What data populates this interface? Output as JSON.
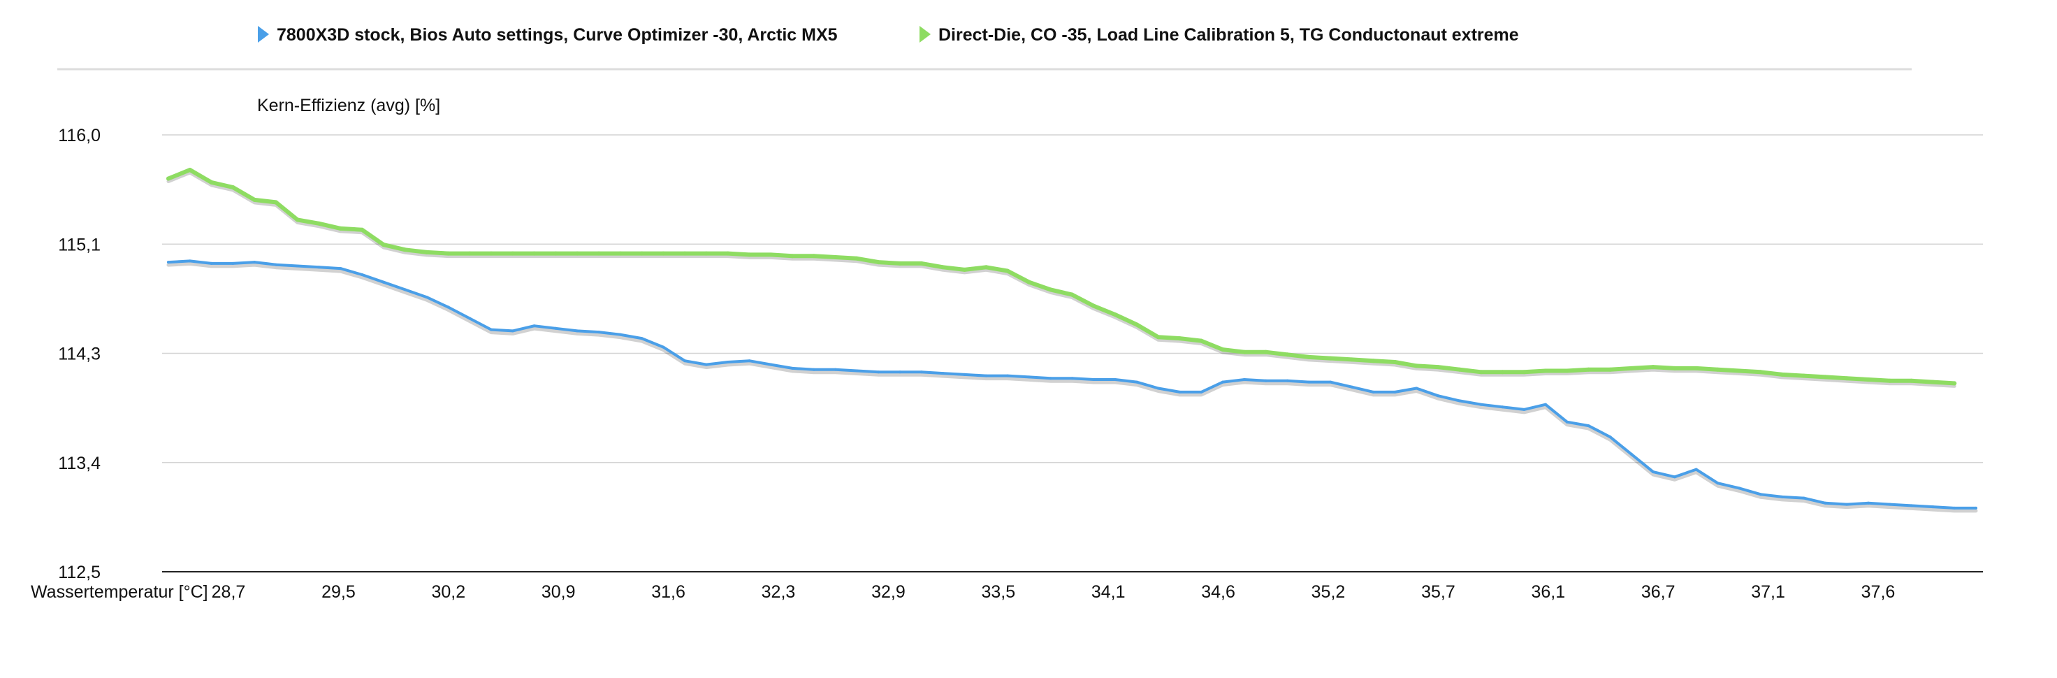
{
  "chart_data": {
    "type": "line",
    "ylabel": "Kern-Effizienz (avg) [%]",
    "xlabel": "Wassertemperatur [°C]",
    "x_ticks": [
      "28,7",
      "29,5",
      "30,2",
      "30,9",
      "31,6",
      "32,3",
      "32,9",
      "33,5",
      "34,1",
      "34,6",
      "35,2",
      "35,7",
      "36,1",
      "36,7",
      "37,1",
      "37,6"
    ],
    "y_ticks": [
      "116,0",
      "115,1",
      "114,3",
      "113,4",
      "112,5"
    ],
    "ylim": [
      112.5,
      116.0
    ],
    "grid": true,
    "legend_position": "top",
    "series": [
      {
        "name": "7800X3D stock, Bios Auto settings, Curve Optimizer -30, Arctic MX5",
        "color": "#4a9fe8",
        "x": [
          0.0,
          0.2,
          0.4,
          0.6,
          0.8,
          1.0,
          1.2,
          1.4,
          1.6,
          1.8,
          2.0,
          2.2,
          2.4,
          2.6,
          2.8,
          3.0,
          3.2,
          3.4,
          3.6,
          3.8,
          4.0,
          4.2,
          4.4,
          4.6,
          4.8,
          5.0,
          5.2,
          5.4,
          5.6,
          5.8,
          6.0,
          6.2,
          6.4,
          6.6,
          6.8,
          7.0,
          7.2,
          7.4,
          7.6,
          7.8,
          8.0,
          8.2,
          8.4,
          8.6,
          8.8,
          9.0,
          9.2,
          9.4,
          9.6,
          9.8,
          10.0,
          10.2,
          10.4,
          10.6,
          10.8,
          11.0,
          11.2,
          11.4,
          11.6,
          11.8,
          12.0,
          12.2,
          12.4,
          12.6,
          12.8,
          13.0,
          13.2,
          13.4,
          13.6,
          13.8,
          14.0,
          14.2,
          14.4,
          14.6,
          14.8,
          15.0,
          15.2,
          15.4,
          15.6,
          15.8,
          16.0,
          16.2,
          16.4,
          16.6,
          16.8
        ],
        "values": [
          114.98,
          114.99,
          114.97,
          114.97,
          114.98,
          114.96,
          114.95,
          114.94,
          114.93,
          114.88,
          114.82,
          114.76,
          114.7,
          114.62,
          114.53,
          114.44,
          114.43,
          114.47,
          114.45,
          114.43,
          114.42,
          114.4,
          114.37,
          114.3,
          114.19,
          114.16,
          114.18,
          114.19,
          114.16,
          114.13,
          114.12,
          114.12,
          114.11,
          114.1,
          114.1,
          114.1,
          114.09,
          114.08,
          114.07,
          114.07,
          114.06,
          114.05,
          114.05,
          114.04,
          114.04,
          114.02,
          113.97,
          113.94,
          113.94,
          114.02,
          114.04,
          114.03,
          114.03,
          114.02,
          114.02,
          113.98,
          113.94,
          113.94,
          113.97,
          113.91,
          113.87,
          113.84,
          113.82,
          113.8,
          113.84,
          113.7,
          113.67,
          113.58,
          113.44,
          113.3,
          113.26,
          113.32,
          113.21,
          113.17,
          113.12,
          113.1,
          113.09,
          113.05,
          113.04,
          113.05,
          113.04,
          113.03,
          113.02,
          113.01,
          113.01
        ]
      },
      {
        "name": "Direct-Die, CO -35, Load Line Calibration 5, TG Conductonaut extreme",
        "color": "#8edc62",
        "x": [
          0.0,
          0.2,
          0.4,
          0.6,
          0.8,
          1.0,
          1.2,
          1.4,
          1.6,
          1.8,
          2.0,
          2.2,
          2.4,
          2.6,
          2.8,
          3.0,
          3.2,
          3.4,
          3.6,
          3.8,
          4.0,
          4.2,
          4.4,
          4.6,
          4.8,
          5.0,
          5.2,
          5.4,
          5.6,
          5.8,
          6.0,
          6.2,
          6.4,
          6.6,
          6.8,
          7.0,
          7.2,
          7.4,
          7.6,
          7.8,
          8.0,
          8.2,
          8.4,
          8.6,
          8.8,
          9.0,
          9.2,
          9.4,
          9.6,
          9.8,
          10.0,
          10.2,
          10.4,
          10.6,
          10.8,
          11.0,
          11.2,
          11.4,
          11.6,
          11.8,
          12.0,
          12.2,
          12.4,
          12.6,
          12.8,
          13.0,
          13.2,
          13.4,
          13.6,
          13.8,
          14.0,
          14.2,
          14.4,
          14.6,
          14.8,
          15.0,
          15.2,
          15.4,
          15.6,
          15.8,
          16.0,
          16.2,
          16.4,
          16.6
        ],
        "values": [
          115.65,
          115.72,
          115.62,
          115.58,
          115.48,
          115.46,
          115.32,
          115.29,
          115.25,
          115.24,
          115.12,
          115.08,
          115.06,
          115.05,
          115.05,
          115.05,
          115.05,
          115.05,
          115.05,
          115.05,
          115.05,
          115.05,
          115.05,
          115.05,
          115.05,
          115.05,
          115.05,
          115.04,
          115.04,
          115.03,
          115.03,
          115.02,
          115.01,
          114.98,
          114.97,
          114.97,
          114.94,
          114.92,
          114.94,
          114.91,
          114.82,
          114.76,
          114.72,
          114.63,
          114.56,
          114.48,
          114.38,
          114.37,
          114.35,
          114.28,
          114.26,
          114.26,
          114.24,
          114.22,
          114.21,
          114.2,
          114.19,
          114.18,
          114.15,
          114.14,
          114.12,
          114.1,
          114.1,
          114.1,
          114.11,
          114.11,
          114.12,
          114.12,
          114.13,
          114.14,
          114.13,
          114.13,
          114.12,
          114.11,
          114.1,
          114.08,
          114.07,
          114.06,
          114.05,
          114.04,
          114.03,
          114.03,
          114.02,
          114.01
        ]
      }
    ]
  }
}
